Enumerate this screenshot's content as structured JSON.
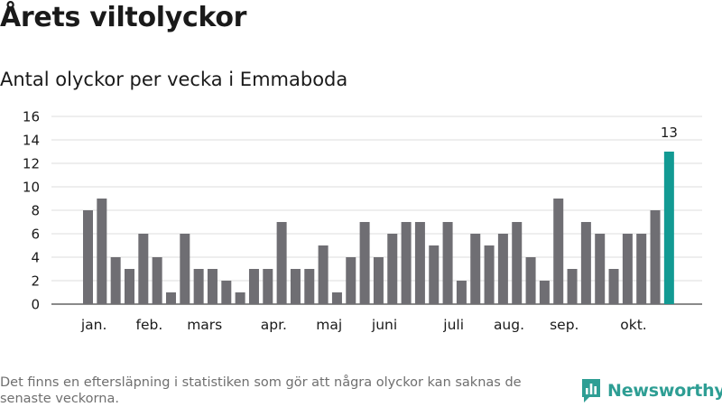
{
  "title": "Årets viltolyckor",
  "subtitle": "Antal olyckor per vecka i Emmaboda",
  "footnote": "Det finns en eftersläpning i statistiken som gör att några olyckor kan saknas de senaste veckorna.",
  "brand": {
    "name": "Newsworthy",
    "color": "#2e9e94"
  },
  "chart_data": {
    "type": "bar",
    "title": "Antal olyckor per vecka i Emmaboda",
    "xlabel": "",
    "ylabel": "",
    "ylim": [
      0,
      16
    ],
    "yticks": [
      0,
      2,
      4,
      6,
      8,
      10,
      12,
      14,
      16
    ],
    "grid": true,
    "bar_color": "#6f6e73",
    "highlight_color": "#129a93",
    "highlight_index": 42,
    "highlight_label": "13",
    "values": [
      8,
      9,
      4,
      3,
      6,
      4,
      1,
      6,
      3,
      3,
      2,
      1,
      3,
      3,
      7,
      3,
      3,
      5,
      1,
      4,
      7,
      4,
      6,
      7,
      7,
      5,
      7,
      2,
      6,
      5,
      6,
      7,
      4,
      2,
      9,
      3,
      7,
      6,
      3,
      6,
      6,
      8,
      13
    ],
    "month_labels": [
      {
        "label": "jan.",
        "bar_index": 0.3
      },
      {
        "label": "feb.",
        "bar_index": 4.3
      },
      {
        "label": "mars",
        "bar_index": 8.3
      },
      {
        "label": "apr.",
        "bar_index": 13.3
      },
      {
        "label": "maj",
        "bar_index": 17.3
      },
      {
        "label": "juni",
        "bar_index": 21.3
      },
      {
        "label": "juli",
        "bar_index": 26.3
      },
      {
        "label": "aug.",
        "bar_index": 30.3
      },
      {
        "label": "sep.",
        "bar_index": 34.3
      },
      {
        "label": "okt.",
        "bar_index": 39.3
      }
    ]
  }
}
